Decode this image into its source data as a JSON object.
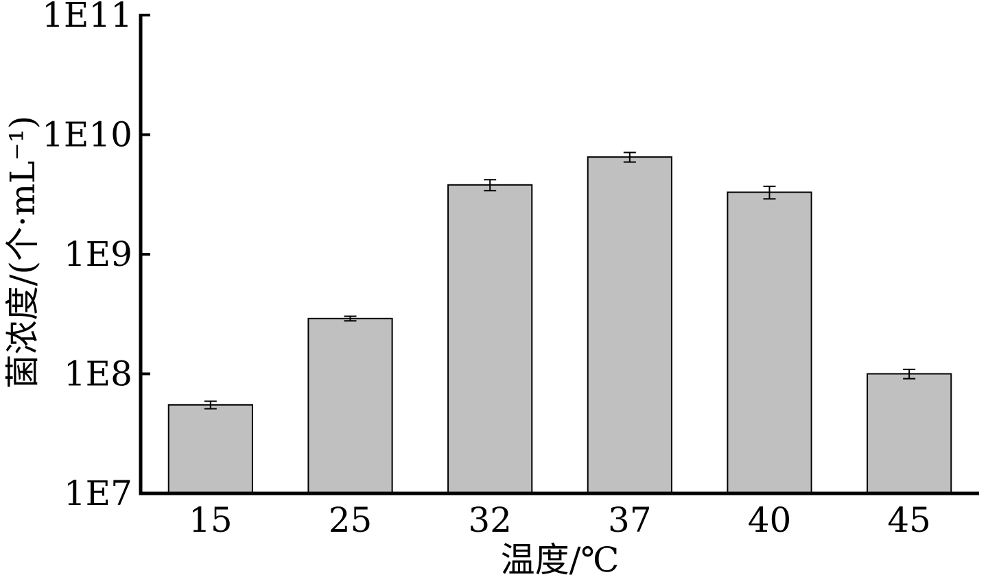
{
  "chart_data": {
    "type": "bar",
    "xlabel": "温度/℃",
    "ylabel": "菌浓度/(个·mL⁻¹)",
    "yscale": "log",
    "ylim": [
      10000000,
      100000000000
    ],
    "yticks": [
      10000000,
      100000000,
      1000000000,
      10000000000,
      100000000000
    ],
    "ytick_labels": [
      "1E7",
      "1E8",
      "1E9",
      "1E10",
      "1E11"
    ],
    "categories": [
      "15",
      "25",
      "32",
      "37",
      "40",
      "45"
    ],
    "values": [
      55000000,
      290000000,
      3800000000,
      6500000000,
      3300000000,
      100000000
    ],
    "errors": [
      4000000,
      13000000,
      400000000,
      600000000,
      400000000,
      9000000
    ],
    "bar_color": "#c0c0c0",
    "bar_edge_color": "#000000",
    "grid": false,
    "legend": null
  }
}
